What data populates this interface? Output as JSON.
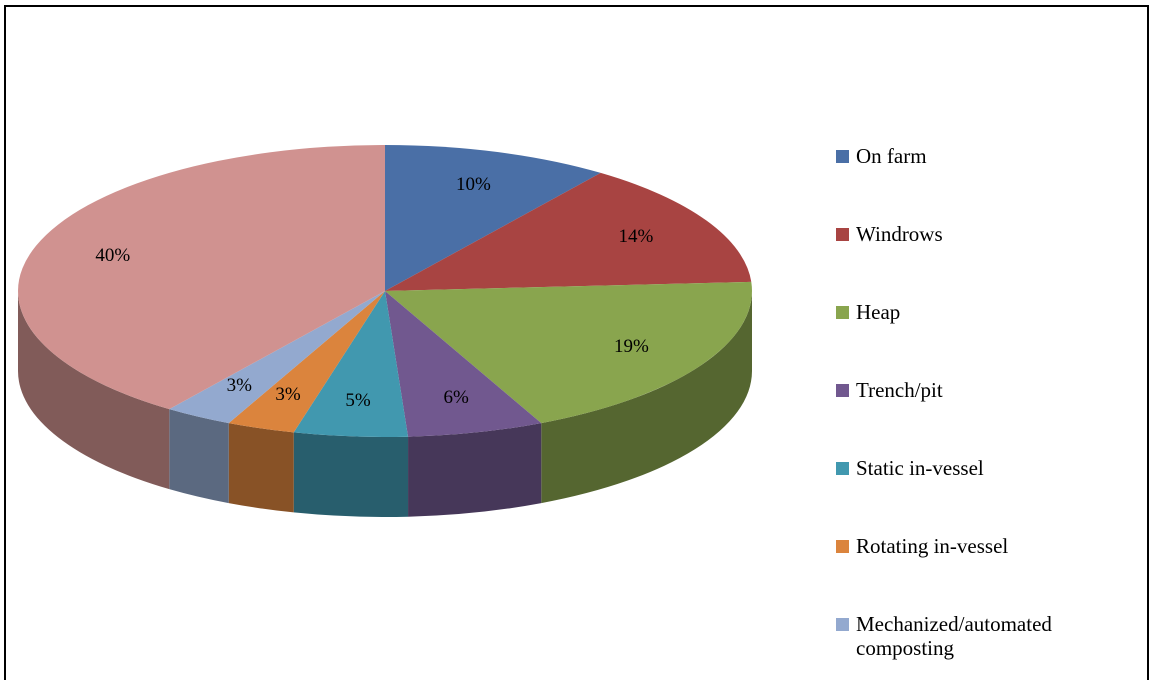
{
  "chart_data": {
    "type": "pie",
    "categories": [
      "On farm",
      "Windrows",
      "Heap",
      "Trench/pit",
      "Static in-vessel",
      "Rotating in-vessel",
      "Mechanized/automated composting",
      null
    ],
    "values": [
      10,
      14,
      19,
      6,
      5,
      3,
      3,
      40
    ],
    "value_labels": [
      "10%",
      "14%",
      "19%",
      "6%",
      "5%",
      "3%",
      "3%",
      "40%"
    ],
    "colors": [
      "#4a6fa6",
      "#a84442",
      "#89a54e",
      "#71588f",
      "#4198af",
      "#db843d",
      "#93a9cf",
      "#d09290"
    ],
    "legend": "right"
  }
}
